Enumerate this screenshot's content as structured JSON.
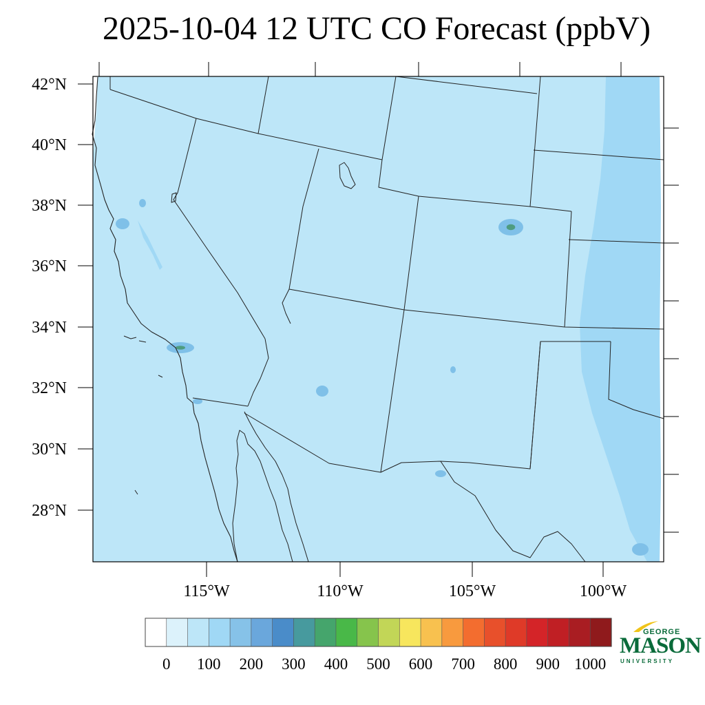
{
  "title": "2025-10-04 12 UTC CO Forecast (ppbV)",
  "map": {
    "lat_labels": [
      "42°N",
      "40°N",
      "38°N",
      "36°N",
      "34°N",
      "32°N",
      "30°N",
      "28°N"
    ],
    "lon_labels": [
      "115°W",
      "110°W",
      "105°W",
      "100°W"
    ],
    "base_fill": "#bde6f8",
    "high_fill": "#a0d8f5",
    "hotspot_fill": "#7fc0e8",
    "hotspot_core": "#4e9c80"
  },
  "colorbar": {
    "colors": [
      "#ffffff",
      "#dcf2fb",
      "#bde6f8",
      "#a0d8f5",
      "#86c2e8",
      "#6aa7dc",
      "#4a8cc9",
      "#479a9e",
      "#45a56c",
      "#49b848",
      "#86c44c",
      "#c2d657",
      "#f7e65d",
      "#f8c14f",
      "#f89a3e",
      "#f36d2f",
      "#e8502b",
      "#df3a28",
      "#d42428",
      "#c01f24",
      "#a91d22",
      "#8f1a1c"
    ],
    "labels": [
      "0",
      "100",
      "200",
      "300",
      "400",
      "500",
      "600",
      "700",
      "800",
      "900",
      "1000"
    ]
  },
  "logo": {
    "line1": "GEORGE",
    "line2": "MASON",
    "line3": "UNIVERSITY",
    "color": "#0a6b3a",
    "accent": "#f0c419"
  }
}
